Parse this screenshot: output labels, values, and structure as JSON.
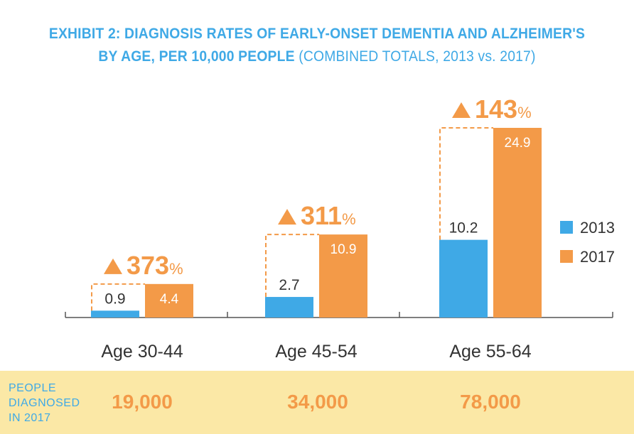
{
  "title": {
    "line1": "EXHIBIT 2: DIAGNOSIS RATES OF EARLY-ONSET DEMENTIA AND ALZHEIMER'S",
    "line2_bold": "BY AGE, PER 10,000 PEOPLE",
    "line2_sub": "(COMBINED TOTALS, 2013 vs. 2017)"
  },
  "colors": {
    "s2013": "#3fa9e6",
    "s2017": "#f39a48",
    "footer_bg": "#fbe8a6",
    "text": "#333333"
  },
  "chart_data": {
    "type": "bar",
    "categories": [
      "Age 30-44",
      "Age 45-54",
      "Age 55-64"
    ],
    "series": [
      {
        "name": "2013",
        "values": [
          0.9,
          2.7,
          10.2
        ]
      },
      {
        "name": "2017",
        "values": [
          4.4,
          10.9,
          24.9
        ]
      }
    ],
    "value_labels": {
      "2013": [
        "0.9",
        "2.7",
        "10.2"
      ],
      "2017": [
        "4.4",
        "10.9",
        "24.9"
      ]
    },
    "increase_labels": [
      {
        "number": "373",
        "unit": "%"
      },
      {
        "number": "311",
        "unit": "%"
      },
      {
        "number": "143",
        "unit": "%"
      }
    ],
    "legend": [
      "2013",
      "2017"
    ],
    "ylim": [
      0,
      24.9
    ]
  },
  "footer": {
    "label_lines": [
      "PEOPLE",
      "DIAGNOSED",
      "IN 2017"
    ],
    "values": [
      "19,000",
      "34,000",
      "78,000"
    ]
  }
}
